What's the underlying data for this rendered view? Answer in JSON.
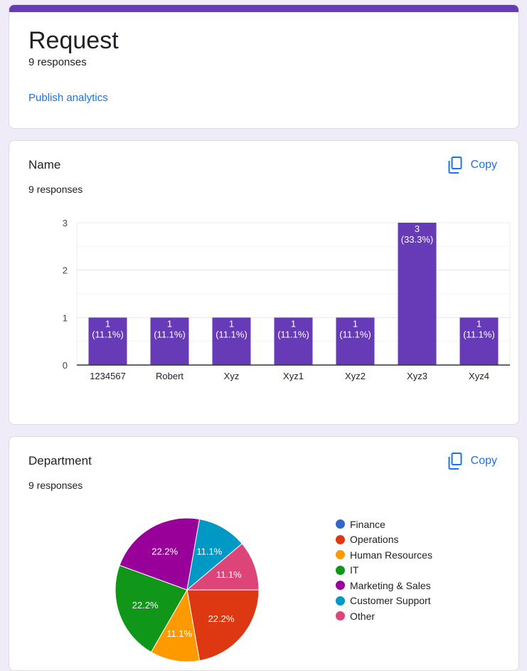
{
  "header": {
    "title": "Request",
    "responses": "9 responses",
    "publish_label": "Publish analytics",
    "accent_color": "#673ab7"
  },
  "questions": [
    {
      "title": "Name",
      "responses": "9 responses",
      "copy_label": "Copy",
      "copy_icon": "copy-icon"
    },
    {
      "title": "Department",
      "responses": "9 responses",
      "copy_label": "Copy",
      "copy_icon": "copy-icon"
    }
  ],
  "chart_data": [
    {
      "type": "bar",
      "categories": [
        "1234567",
        "Robert",
        "Xyz",
        "Xyz1",
        "Xyz2",
        "Xyz3",
        "Xyz4"
      ],
      "values": [
        1,
        1,
        1,
        1,
        1,
        3,
        1
      ],
      "labels": [
        [
          "1",
          "(11.1%)"
        ],
        [
          "1",
          "(11.1%)"
        ],
        [
          "1",
          "(11.1%)"
        ],
        [
          "1",
          "(11.1%)"
        ],
        [
          "1",
          "(11.1%)"
        ],
        [
          "3",
          "(33.3%)"
        ],
        [
          "1",
          "(11.1%)"
        ]
      ],
      "yticks": [
        0,
        1,
        2,
        3
      ],
      "ylim": [
        0,
        3
      ],
      "color": "#673ab7",
      "grid": true
    },
    {
      "type": "pie",
      "legend_position": "right",
      "slices": [
        {
          "label": "Finance",
          "value": 0,
          "color": "#3366cc",
          "pct": ""
        },
        {
          "label": "Operations",
          "value": 22.2,
          "color": "#dc3912",
          "pct": "22.2%"
        },
        {
          "label": "Human Resources",
          "value": 11.1,
          "color": "#ff9900",
          "pct": "11.1%"
        },
        {
          "label": "IT",
          "value": 22.2,
          "color": "#109618",
          "pct": "22.2%"
        },
        {
          "label": "Marketing & Sales",
          "value": 22.2,
          "color": "#990099",
          "pct": "22.2%"
        },
        {
          "label": "Customer Support",
          "value": 11.1,
          "color": "#0099c6",
          "pct": "11.1%"
        },
        {
          "label": "Other",
          "value": 11.1,
          "color": "#dd4477",
          "pct": "11.1%"
        }
      ]
    }
  ]
}
